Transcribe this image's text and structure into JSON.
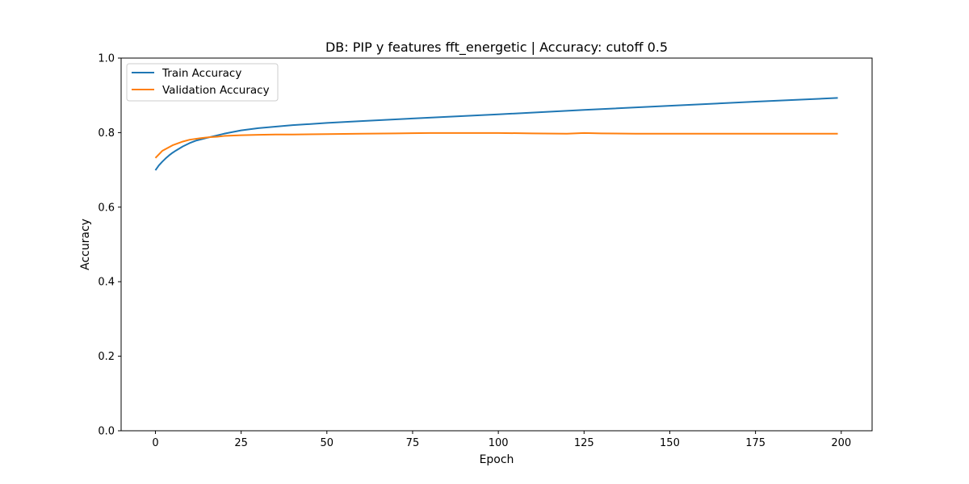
{
  "chart_data": {
    "type": "line",
    "title": "DB: PIP y features fft_energetic | Accuracy: cutoff 0.5",
    "xlabel": "Epoch",
    "ylabel": "Accuracy",
    "xlim": [
      -10,
      209
    ],
    "ylim": [
      0,
      1
    ],
    "xticks": [
      0,
      25,
      50,
      75,
      100,
      125,
      150,
      175,
      200
    ],
    "yticks": [
      0.0,
      0.2,
      0.4,
      0.6,
      0.8,
      1.0
    ],
    "xtick_labels": [
      "0",
      "25",
      "50",
      "75",
      "100",
      "125",
      "150",
      "175",
      "200"
    ],
    "ytick_labels": [
      "0.0",
      "0.2",
      "0.4",
      "0.6",
      "0.8",
      "1.0"
    ],
    "grid": false,
    "legend_position": "top-left",
    "series": [
      {
        "name": "Train Accuracy",
        "color": "#1f77b4",
        "x": [
          0,
          1,
          2,
          3,
          4,
          5,
          6,
          8,
          10,
          12,
          15,
          20,
          25,
          30,
          40,
          50,
          60,
          75,
          100,
          125,
          150,
          175,
          199
        ],
        "y": [
          0.699,
          0.712,
          0.722,
          0.731,
          0.739,
          0.746,
          0.752,
          0.763,
          0.772,
          0.779,
          0.786,
          0.797,
          0.806,
          0.812,
          0.82,
          0.826,
          0.831,
          0.838,
          0.849,
          0.861,
          0.872,
          0.883,
          0.893
        ]
      },
      {
        "name": "Validation Accuracy",
        "color": "#ff7f0e",
        "x": [
          0,
          2,
          5,
          8,
          10,
          13,
          16,
          18,
          20,
          25,
          30,
          35,
          40,
          50,
          60,
          70,
          80,
          90,
          100,
          110,
          120,
          125,
          130,
          140,
          150,
          160,
          170,
          180,
          190,
          199
        ],
        "y": [
          0.732,
          0.751,
          0.766,
          0.776,
          0.781,
          0.785,
          0.788,
          0.789,
          0.791,
          0.793,
          0.794,
          0.795,
          0.795,
          0.796,
          0.797,
          0.798,
          0.799,
          0.799,
          0.799,
          0.798,
          0.797,
          0.799,
          0.798,
          0.797,
          0.797,
          0.797,
          0.797,
          0.797,
          0.797,
          0.797
        ]
      }
    ]
  }
}
